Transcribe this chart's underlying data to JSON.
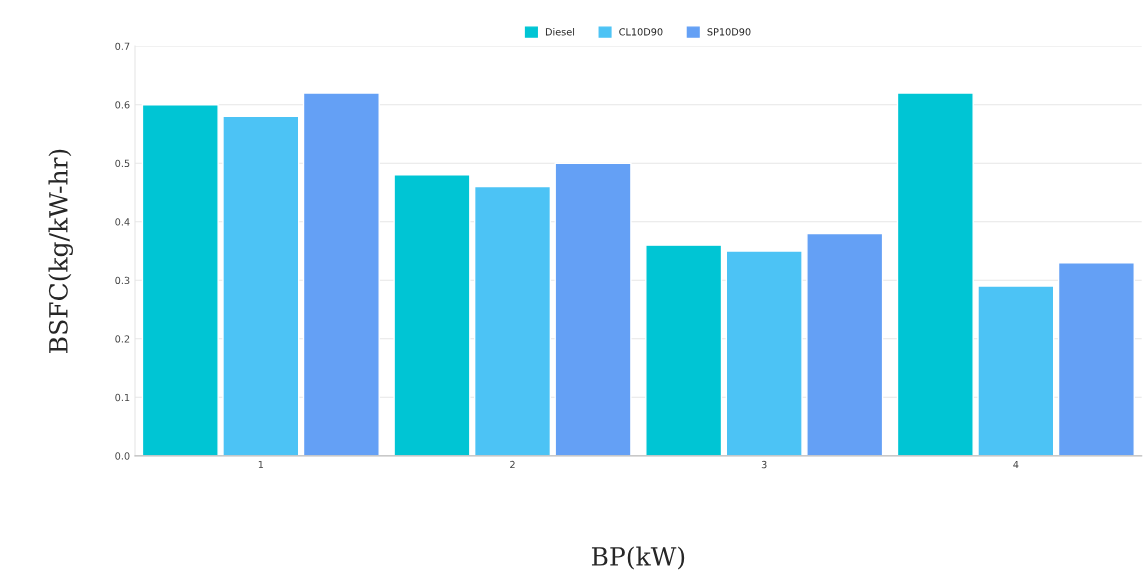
{
  "chart_data": {
    "type": "bar",
    "xlabel": "BP(kW)",
    "ylabel": "BSFC(kg/kW-hr)",
    "categories": [
      "1",
      "2",
      "3",
      "4"
    ],
    "series": [
      {
        "name": "Diesel",
        "color": "#00c5d4",
        "values": [
          0.6,
          0.48,
          0.36,
          0.62
        ]
      },
      {
        "name": "CL10D90",
        "color": "#4cc3f5",
        "values": [
          0.58,
          0.46,
          0.35,
          0.29
        ]
      },
      {
        "name": "SP10D90",
        "color": "#64a0f5",
        "values": [
          0.62,
          0.5,
          0.38,
          0.33
        ]
      }
    ],
    "ylim": [
      0,
      0.7
    ],
    "yticks": [
      {
        "value": 0,
        "label": "0.0"
      },
      0.1,
      0.2,
      0.3,
      0.4,
      0.5,
      0.6,
      0.7
    ],
    "grid": "y",
    "legend": "top"
  }
}
